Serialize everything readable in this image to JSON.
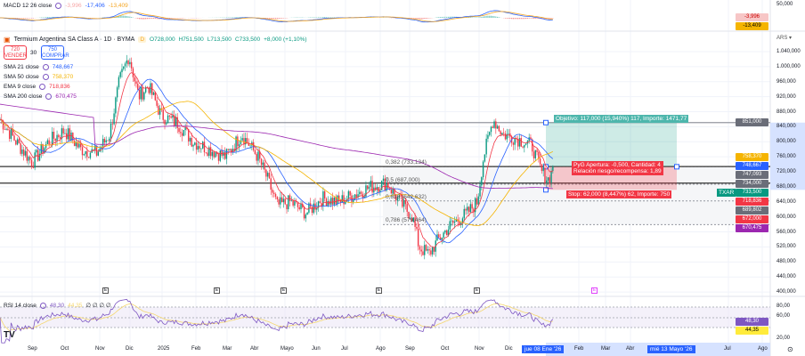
{
  "macd": {
    "label": "MACD 12 26 close",
    "hist": "-3,996",
    "macd": "-17,406",
    "signal": "-13,409",
    "axis_top": "50,000"
  },
  "symbol": {
    "name": "Termium Argentina SA Class A · 1D · BYMA",
    "badge": "D",
    "open": "O728,000",
    "high": "H751,500",
    "low": "L713,500",
    "close": "C733,500",
    "change": "+8,000 (+1,10%)"
  },
  "trade": {
    "sell_price": "720",
    "sell_label": "VENDER",
    "spread": "30",
    "buy_price": "750",
    "buy_label": "COMPRAR"
  },
  "indicators": [
    {
      "label": "SMA 21 close",
      "value": "748,667",
      "color": "#2962ff"
    },
    {
      "label": "SMA 50 close",
      "value": "758,370",
      "color": "#f5b400"
    },
    {
      "label": "EMA 9 close",
      "value": "718,836",
      "color": "#f23645"
    },
    {
      "label": "SMA 200 close",
      "value": "670,475",
      "color": "#9c27b0"
    }
  ],
  "currency": "ARS",
  "price_axis": [
    "1.040,000",
    "1.000,000",
    "960,000",
    "920,000",
    "880,000",
    "840,000",
    "800,000",
    "760,000",
    "720,000",
    "680,000",
    "640,000",
    "600,000",
    "560,000",
    "520,000",
    "480,000",
    "440,000",
    "400,000"
  ],
  "price_tags": [
    {
      "value": "851,000",
      "price": 851,
      "color": "#6a6d78"
    },
    {
      "value": "758,370",
      "price": 758.37,
      "color": "#f5b400"
    },
    {
      "value": "748,667",
      "price": 748.667,
      "color": "#2962ff"
    },
    {
      "value": "747,093",
      "price": 745,
      "color": "#6a6d78"
    },
    {
      "value": "734,000",
      "price": 736,
      "color": "#6a6d78"
    },
    {
      "value": "733,500",
      "price": 726,
      "color": "#089981",
      "ticker": "TXAR"
    },
    {
      "value": "718,836",
      "price": 716,
      "color": "#f23645"
    },
    {
      "value": "689,802",
      "price": 692,
      "color": "#6a6d78"
    },
    {
      "value": "672,000",
      "price": 681,
      "color": "#f23645"
    },
    {
      "value": "670,475",
      "price": 669,
      "color": "#9c27b0"
    }
  ],
  "fib": [
    {
      "label": "0,382 (733,134)",
      "price": 734
    },
    {
      "label": "0,5 (687,000)",
      "price": 687
    },
    {
      "label": "0,618 (642,632)",
      "price": 642.632
    },
    {
      "label": "0,786 (579,464)",
      "price": 579.464
    }
  ],
  "position": {
    "target_text": "Objetivo: 117,000 (15,940%) 117, Importe: 1471,77",
    "pnl_text": "PyG Apertura: -0,500, Cantidad: 4",
    "rr_text": "Relación riesgo/recompensa: 1,89",
    "stop_text": "Stop: 62,000 (8,447%) 62, Importe: 750",
    "target": 851,
    "entry": 733.5,
    "stop": 672
  },
  "rsi": {
    "label": "RSI 14 close",
    "value": "48,30",
    "ma": "44,35",
    "extra": "∅ ∅ ∅ ∅",
    "axis": [
      "80,00",
      "60,00",
      "20,00"
    ]
  },
  "time_axis": [
    "Sep",
    "Oct",
    "Nov",
    "Dic",
    "2025",
    "Feb",
    "Mar",
    "Abr",
    "Mayo",
    "Jun",
    "Jul",
    "Ago",
    "Sep",
    "Oct",
    "Nov",
    "Dic",
    "Feb",
    "Mar",
    "Abr",
    "Jul",
    "Ago"
  ],
  "cursor_dates": {
    "start": "jue 08 Ene '26",
    "end": "mié 13 Mayo '26"
  },
  "earnings_label": "E",
  "chart_data": {
    "type": "candlestick",
    "anchors_month_close": [
      [
        0,
        860
      ],
      [
        0.5,
        800
      ],
      [
        1,
        745
      ],
      [
        1.5,
        800
      ],
      [
        2,
        830
      ],
      [
        2.5,
        780
      ],
      [
        3,
        770
      ],
      [
        3.4,
        820
      ],
      [
        3.7,
        960
      ],
      [
        4,
        1030
      ],
      [
        4.3,
        920
      ],
      [
        4.6,
        950
      ],
      [
        5,
        870
      ],
      [
        5.5,
        850
      ],
      [
        6,
        800
      ],
      [
        6.5,
        780
      ],
      [
        7,
        760
      ],
      [
        7.5,
        820
      ],
      [
        8,
        760
      ],
      [
        8.3,
        700
      ],
      [
        8.6,
        630
      ],
      [
        9,
        640
      ],
      [
        9.5,
        610
      ],
      [
        10,
        650
      ],
      [
        10.5,
        640
      ],
      [
        11,
        660
      ],
      [
        11.5,
        680
      ],
      [
        12,
        690
      ],
      [
        12.4,
        640
      ],
      [
        12.8,
        600
      ],
      [
        13,
        520
      ],
      [
        13.3,
        500
      ],
      [
        13.6,
        540
      ],
      [
        14,
        580
      ],
      [
        14.5,
        610
      ],
      [
        14.8,
        640
      ],
      [
        15,
        760
      ],
      [
        15.3,
        860
      ],
      [
        15.6,
        820
      ],
      [
        16,
        810
      ],
      [
        16.5,
        790
      ],
      [
        16.8,
        720
      ],
      [
        17,
        700
      ],
      [
        17.2,
        733.5
      ]
    ],
    "last_close": 733.5
  }
}
